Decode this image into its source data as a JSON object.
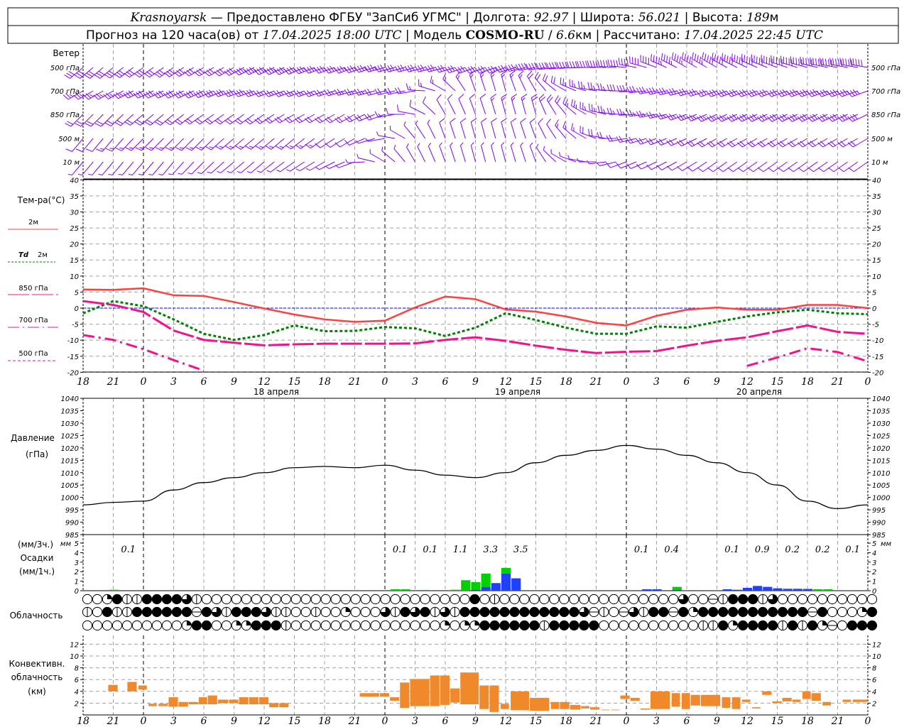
{
  "header": {
    "station": "Krasnoyarsk",
    "provider": " — Предоставлено ФГБУ \"ЗапСиб УГМС\" ",
    "sep": "|",
    "lon_label": " Долгота: ",
    "lon": "92.97",
    "lat_label": " Широта: ",
    "lat": "56.021",
    "alt_label": " Высота: ",
    "alt": "189",
    "alt_unit": "м",
    "forecast_label": "Прогноз на 120 часа(ов) от ",
    "forecast_time": "17.04.2025 18:00 UTC",
    "model_label": " Модель ",
    "model": "COSMO-RU",
    "model_sep": " / ",
    "resolution": "6.6",
    "resolution_unit": "км ",
    "calc_label": " Рассчитано: ",
    "calc_time": "17.04.2025 22:45 UTC"
  },
  "labels": {
    "wind": "Ветер",
    "levels": [
      "500 гПа",
      "700 гПа",
      "850 гПа",
      "500 м",
      "10 м"
    ],
    "temp_title": "Тем-ра(°С)",
    "legend_2m": "2м",
    "legend_td": "Td",
    "legend_td_2m": "2м",
    "legend_850": "850 гПа",
    "legend_700": "700 гПа",
    "legend_500": "500 гПа",
    "pressure_title": "Давление",
    "pressure_unit": "(гПа)",
    "precip_3h": "(мм/3ч.)",
    "precip_title": "Осадки",
    "precip_1h": "(мм/1ч.)",
    "precip_unit_tick": "мм",
    "cloud_title": "Облачность",
    "conv_title_1": "Конвективн.",
    "conv_title_2": "облачность",
    "conv_unit": "(км)",
    "dates": [
      "18 апреля",
      "19 апреля",
      "20 апреля"
    ]
  },
  "colors": {
    "t2m": "#ff4040",
    "td2m": "#008000",
    "p850": "#f0148c",
    "p700": "#f0148c",
    "p500": "#f0148c",
    "zero": "#0000ff",
    "wind": "#8000ff",
    "rain": "#00d000",
    "snow": "#2040ff",
    "conv": "#f0882c",
    "pressure": "#000000"
  },
  "chart_data": {
    "type": "meteogram",
    "time_step_hours": 3,
    "x_tick_labels": [
      "18",
      "21",
      "0",
      "3",
      "6",
      "9",
      "12",
      "15",
      "18",
      "21",
      "0",
      "3",
      "6",
      "9",
      "12",
      "15",
      "18",
      "21",
      "0",
      "3",
      "6",
      "9",
      "12",
      "15",
      "18",
      "21",
      "0"
    ],
    "wind": {
      "units": "m/s",
      "levels": [
        {
          "name": "500 гПа",
          "dir": [
            230,
            230,
            235,
            235,
            240,
            240,
            245,
            245,
            250,
            250,
            255,
            255,
            255,
            250,
            250,
            260,
            265,
            270,
            275,
            290,
            300,
            300,
            295,
            290,
            285,
            280,
            280
          ],
          "speed": [
            15,
            15,
            16,
            16,
            17,
            17,
            18,
            18,
            18,
            18,
            18,
            16,
            15,
            16,
            18,
            20,
            22,
            22,
            20,
            22,
            24,
            25,
            26,
            27,
            28,
            28,
            28
          ]
        },
        {
          "name": "700 гПа",
          "dir": [
            240,
            240,
            245,
            245,
            245,
            250,
            250,
            250,
            250,
            255,
            255,
            260,
            300,
            340,
            345,
            330,
            300,
            280,
            270,
            260,
            255,
            250,
            250,
            250,
            250,
            250,
            250
          ],
          "speed": [
            14,
            14,
            15,
            15,
            15,
            15,
            15,
            14,
            14,
            14,
            12,
            10,
            8,
            8,
            8,
            10,
            12,
            14,
            15,
            16,
            16,
            16,
            17,
            17,
            18,
            18,
            18
          ]
        },
        {
          "name": "850 гПа",
          "dir": [
            225,
            225,
            230,
            230,
            235,
            235,
            235,
            240,
            240,
            240,
            250,
            280,
            330,
            340,
            345,
            345,
            320,
            290,
            270,
            260,
            250,
            245,
            245,
            245,
            245,
            245,
            245
          ],
          "speed": [
            10,
            12,
            12,
            12,
            12,
            12,
            12,
            12,
            12,
            12,
            10,
            6,
            6,
            7,
            8,
            10,
            12,
            14,
            14,
            14,
            14,
            14,
            15,
            15,
            15,
            15,
            15
          ]
        },
        {
          "name": "500 м",
          "dir": [
            220,
            220,
            225,
            225,
            225,
            230,
            230,
            230,
            235,
            240,
            260,
            320,
            340,
            345,
            345,
            340,
            320,
            290,
            260,
            250,
            245,
            240,
            240,
            240,
            240,
            240,
            240
          ],
          "speed": [
            6,
            8,
            8,
            8,
            8,
            8,
            8,
            8,
            8,
            6,
            4,
            4,
            5,
            5,
            6,
            6,
            8,
            10,
            12,
            12,
            12,
            12,
            12,
            12,
            12,
            12,
            12
          ]
        },
        {
          "name": "10 м",
          "dir": [
            220,
            220,
            220,
            220,
            225,
            230,
            230,
            235,
            240,
            250,
            300,
            330,
            340,
            345,
            345,
            340,
            300,
            270,
            250,
            245,
            240,
            235,
            235,
            235,
            235,
            235,
            235
          ],
          "speed": [
            4,
            4,
            4,
            4,
            4,
            4,
            4,
            4,
            4,
            3,
            3,
            3,
            3,
            3,
            3,
            4,
            4,
            4,
            5,
            5,
            5,
            5,
            5,
            5,
            5,
            5,
            5
          ]
        }
      ]
    },
    "temperature": {
      "ylim": [
        -20,
        40
      ],
      "yticks": [
        40,
        35,
        30,
        25,
        20,
        15,
        10,
        5,
        0,
        -5,
        -10,
        -15,
        -20
      ],
      "series": [
        {
          "name": "2м",
          "values": [
            5.8,
            5.7,
            6.2,
            4.0,
            3.8,
            1.9,
            -0.1,
            -2.0,
            -3.5,
            -4.3,
            -3.9,
            0.2,
            3.6,
            2.8,
            -0.4,
            -1.1,
            -2.6,
            -4.6,
            -5.4,
            -2.4,
            -0.5,
            0.2,
            -0.5,
            -0.5,
            1.0,
            1.0,
            0.0
          ]
        },
        {
          "name": "Td 2м",
          "values": [
            -1.6,
            2.2,
            0.6,
            -3.5,
            -8.0,
            -9.9,
            -8.4,
            -5.4,
            -7.2,
            -7.1,
            -5.9,
            -6.3,
            -8.7,
            -6.1,
            -1.6,
            -3.7,
            -6.1,
            -8.0,
            -8.0,
            -5.7,
            -6.1,
            -4.3,
            -2.6,
            -1.3,
            -0.5,
            -1.6,
            -1.9
          ]
        },
        {
          "name": "850 гПа",
          "values": [
            2.2,
            1.0,
            -1.2,
            -7.0,
            -9.9,
            -10.8,
            -11.6,
            -11.3,
            -11.1,
            -11.1,
            -11.1,
            -11.0,
            -9.9,
            -9.1,
            -10.2,
            -11.7,
            -13.0,
            -14.0,
            -13.6,
            -13.4,
            -11.7,
            -10.2,
            -9.1,
            -7.2,
            -5.4,
            -7.4,
            -8.0
          ]
        },
        {
          "name": "700 гПа",
          "values": [
            -8.4,
            -9.9,
            -12.8,
            -16.2,
            -19.5,
            null,
            null,
            null,
            null,
            null,
            null,
            null,
            null,
            null,
            null,
            null,
            null,
            null,
            null,
            null,
            null,
            null,
            -18.0,
            -15.4,
            -12.5,
            -13.7,
            -16.6
          ]
        },
        {
          "name": "500 гПа",
          "values": [
            null,
            null,
            null,
            null,
            null,
            null,
            null,
            null,
            null,
            null,
            null,
            null,
            null,
            null,
            null,
            null,
            null,
            null,
            null,
            null,
            null,
            null,
            null,
            null,
            null,
            null,
            null
          ]
        }
      ]
    },
    "pressure": {
      "ylim": [
        985,
        1040
      ],
      "yticks": [
        1040,
        1035,
        1030,
        1025,
        1020,
        1015,
        1010,
        1005,
        1000,
        995,
        990,
        985
      ],
      "values": [
        997,
        998,
        998.5,
        1003,
        1006,
        1008,
        1010,
        1012,
        1012.5,
        1012,
        1013,
        1011,
        1009,
        1008,
        1010,
        1014,
        1017,
        1019,
        1021,
        1019.5,
        1017,
        1014,
        1010,
        1005,
        998.5,
        995.5,
        997
      ]
    },
    "precipitation": {
      "ylim": [
        0,
        5
      ],
      "yticks": [
        5,
        4,
        3,
        2,
        1,
        0
      ],
      "hourly": [
        {
          "h": 3,
          "rain": 0.1,
          "snow": 0
        },
        {
          "h": 31,
          "rain": 0.15,
          "snow": 0
        },
        {
          "h": 32,
          "rain": 0.15,
          "snow": 0
        },
        {
          "h": 34,
          "rain": 0.08,
          "snow": 0
        },
        {
          "h": 37,
          "rain": 0.1,
          "snow": 0
        },
        {
          "h": 38,
          "rain": 1.1,
          "snow": 0
        },
        {
          "h": 39,
          "rain": 0.8,
          "snow": 0.1
        },
        {
          "h": 40,
          "rain": 1.4,
          "snow": 0.4
        },
        {
          "h": 41,
          "rain": 0,
          "snow": 0.8
        },
        {
          "h": 42,
          "rain": 0.6,
          "snow": 1.8
        },
        {
          "h": 43,
          "rain": 0,
          "snow": 1.3
        },
        {
          "h": 56,
          "rain": 0,
          "snow": 0.15
        },
        {
          "h": 57,
          "rain": 0,
          "snow": 0.15
        },
        {
          "h": 59,
          "rain": 0.3,
          "snow": 0.1
        },
        {
          "h": 64,
          "rain": 0,
          "snow": 0.15
        },
        {
          "h": 65,
          "rain": 0,
          "snow": 0.1
        },
        {
          "h": 66,
          "rain": 0,
          "snow": 0.3
        },
        {
          "h": 67,
          "rain": 0,
          "snow": 0.5
        },
        {
          "h": 68,
          "rain": 0,
          "snow": 0.4
        },
        {
          "h": 69,
          "rain": 0,
          "snow": 0.25
        },
        {
          "h": 70,
          "rain": 0,
          "snow": 0.2
        },
        {
          "h": 71,
          "rain": 0,
          "snow": 0.2
        },
        {
          "h": 72,
          "rain": 0.05,
          "snow": 0.15
        },
        {
          "h": 73,
          "rain": 0.15,
          "snow": 0
        },
        {
          "h": 74,
          "rain": 0.15,
          "snow": 0
        },
        {
          "h": 76,
          "rain": 0,
          "snow": 0.05
        }
      ],
      "totals_3h": [
        {
          "interval": 1,
          "label": "0.1"
        },
        {
          "interval": 10,
          "label": "0.1"
        },
        {
          "interval": 11,
          "label": "0.1"
        },
        {
          "interval": 12,
          "label": "1.1"
        },
        {
          "interval": 13,
          "label": "3.3"
        },
        {
          "interval": 14,
          "label": "3.5"
        },
        {
          "interval": 18,
          "label": "0.1"
        },
        {
          "interval": 19,
          "label": "0.4"
        },
        {
          "interval": 21,
          "label": "0.1"
        },
        {
          "interval": 22,
          "label": "0.9"
        },
        {
          "interval": 23,
          "label": "0.2"
        },
        {
          "interval": 24,
          "label": "0.2"
        },
        {
          "interval": 25,
          "label": "0.1"
        }
      ]
    },
    "cloudiness": {
      "legend": "0=clear,1=quarter,2=half-vertical,3=three-quarter,4=overcast,5=half-horizontal",
      "rows": [
        "00142244443200000000000000000000000000040200000000000000000030052444230000000000",
        "20422444444543244432200200100032434232444444444444352053244541444444444445400014",
        "00000000001440011444200000000000000010114444442444440000000000224144442424150444"
      ]
    },
    "convective": {
      "ylim": [
        0,
        13
      ],
      "yticks": [
        12,
        10,
        8,
        6,
        4,
        2
      ],
      "units": "km",
      "bars": [
        [
          2.5,
          3.5,
          4,
          5.1
        ],
        [
          4.4,
          5.4,
          4,
          5.6
        ],
        [
          5.5,
          6.4,
          4.3,
          5
        ],
        [
          6.5,
          7.4,
          1.5,
          1.9
        ],
        [
          7.5,
          8.5,
          1.5,
          1.9
        ],
        [
          8.5,
          9.5,
          1.4,
          3
        ],
        [
          9.5,
          10.5,
          1.4,
          2.2
        ],
        [
          10.5,
          11.5,
          1.8,
          2.2
        ],
        [
          11.5,
          12.4,
          1.8,
          3
        ],
        [
          12.4,
          13.4,
          1.8,
          3.3
        ],
        [
          13.4,
          14.5,
          2,
          2.6
        ],
        [
          14.5,
          15.5,
          2,
          2.6
        ],
        [
          15.5,
          16.5,
          1.8,
          3
        ],
        [
          16.5,
          17.5,
          1.8,
          3
        ],
        [
          17.5,
          18.5,
          1.8,
          3
        ],
        [
          18.5,
          19.5,
          1.3,
          2
        ],
        [
          19.5,
          20.5,
          1.3,
          2
        ],
        [
          27.5,
          29.5,
          3.1,
          3.7
        ],
        [
          29.5,
          30.5,
          3.1,
          3.7
        ],
        [
          30.5,
          31.5,
          2.4,
          3
        ],
        [
          31.5,
          32.5,
          1.2,
          5.5
        ],
        [
          32.5,
          34.5,
          1.5,
          6.1
        ],
        [
          34.5,
          35.5,
          1.5,
          6.7
        ],
        [
          35.5,
          36.5,
          1.7,
          6.7
        ],
        [
          36.5,
          37.5,
          2.1,
          4.5
        ],
        [
          37.5,
          39.4,
          1.8,
          7.2
        ],
        [
          39.4,
          40.4,
          1,
          5
        ],
        [
          40.4,
          41.4,
          0.5,
          5
        ],
        [
          41.5,
          42.4,
          1,
          1.9
        ],
        [
          42.5,
          44.4,
          0.8,
          4
        ],
        [
          44.4,
          46.4,
          0.7,
          2.9
        ],
        [
          46.5,
          47.4,
          1,
          2.2
        ],
        [
          47.4,
          48.4,
          1,
          2.2
        ],
        [
          48.4,
          49.5,
          0.9,
          1.7
        ],
        [
          49.5,
          50.4,
          1.1,
          1.5
        ],
        [
          50.4,
          51.4,
          0.9,
          1.3
        ],
        [
          51.5,
          52.4,
          0.8,
          0.9
        ],
        [
          52.5,
          53.4,
          0.8,
          0.9
        ],
        [
          53.4,
          54.4,
          2.7,
          3.3
        ],
        [
          54.4,
          55.4,
          2.4,
          2.9
        ],
        [
          55.4,
          56.4,
          0.9,
          1.1
        ],
        [
          56.4,
          58.4,
          1,
          4
        ],
        [
          58.5,
          59.4,
          1.4,
          3.7
        ],
        [
          59.5,
          60.4,
          1,
          3.7
        ],
        [
          60.4,
          61.4,
          1.6,
          3.4
        ],
        [
          61.4,
          63.4,
          1.5,
          3.4
        ],
        [
          63.5,
          64.4,
          1.2,
          3
        ],
        [
          64.5,
          65.4,
          1,
          3
        ],
        [
          65.5,
          66.4,
          2.2,
          2.6
        ],
        [
          66.5,
          67.4,
          1.1,
          1.3
        ],
        [
          67.5,
          68.5,
          3.4,
          4
        ],
        [
          68.5,
          69.5,
          2,
          2.3
        ],
        [
          69.5,
          70.5,
          2.3,
          2.9
        ],
        [
          70.5,
          71.4,
          2.2,
          2.6
        ],
        [
          71.5,
          72.4,
          2.7,
          4
        ],
        [
          72.4,
          73.4,
          2.4,
          3.7
        ],
        [
          73.5,
          74.4,
          1.6,
          2.2
        ],
        [
          75.5,
          76.4,
          2.2,
          2.6
        ],
        [
          76.5,
          78,
          2.2,
          2.6
        ]
      ]
    }
  }
}
